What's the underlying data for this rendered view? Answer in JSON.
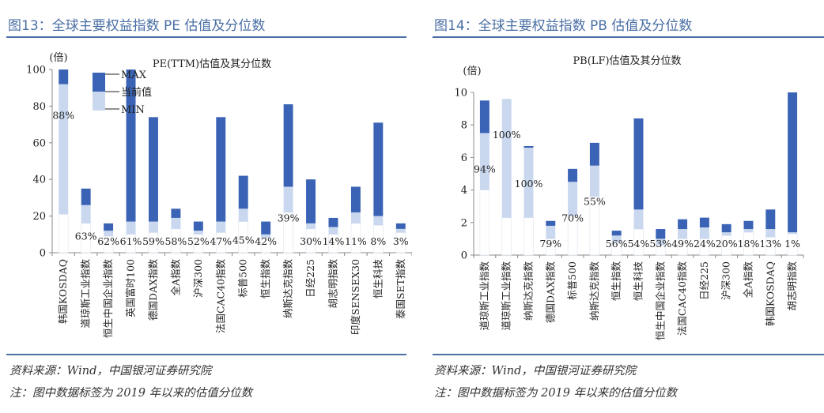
{
  "left": {
    "figure_title": "图13：全球主要权益指数 PE 估值及分位数",
    "source": "资料来源：Wind，中国银河证券研究院",
    "note": "注：图中数据标签为 2019 年以来的估值分位数"
  },
  "right": {
    "figure_title": "图14：全球主要权益指数 PB 估值及分位数",
    "source": "资料来源：Wind，中国银河证券研究院",
    "note": "注：图中数据标签为 2019 年以来的估值分位数"
  },
  "colors": {
    "max_band": "#3a63b5",
    "current_band": "#c9d8ef",
    "min_band": "#ffffff",
    "axis": "#888888"
  },
  "chart_data": [
    {
      "type": "bar",
      "subtype": "stacked-range",
      "title": "PE(TTM)估值及其分位数",
      "ylabel": "(倍)",
      "ylim": [
        0,
        100
      ],
      "yticks": [
        0,
        20,
        40,
        60,
        80,
        100
      ],
      "legend": [
        "MAX",
        "当前值",
        "MIN"
      ],
      "legend_position": "top-left",
      "categories": [
        "韩国KOSDAQ",
        "道琼斯工业指数",
        "恒生中国企业指数",
        "英国富时100",
        "德国DAX指数",
        "全A指数",
        "沪深300",
        "法国CAC40指数",
        "标普500",
        "恒生指数",
        "纳斯达克指数",
        "日经225",
        "胡志明指数",
        "印度SENSEX30",
        "恒生科技",
        "泰国SET指数"
      ],
      "min": [
        21,
        16,
        9,
        10,
        11,
        13,
        10,
        11,
        17,
        8,
        22,
        13,
        10,
        16,
        15,
        11
      ],
      "current": [
        92,
        26,
        12,
        17,
        17,
        19,
        12,
        17,
        24,
        10,
        36,
        16,
        14,
        22,
        20,
        13
      ],
      "max": [
        100,
        35,
        16,
        100,
        74,
        24,
        17,
        74,
        42,
        17,
        81,
        40,
        19,
        36,
        71,
        16
      ],
      "labels": [
        "88%",
        "63%",
        "62%",
        "61%",
        "59%",
        "58%",
        "52%",
        "47%",
        "45%",
        "42%",
        "39%",
        "30%",
        "14%",
        "11%",
        "8%",
        "3%"
      ]
    },
    {
      "type": "bar",
      "subtype": "stacked-range",
      "title": "PB(LF)估值及其分位数",
      "ylabel": "(倍)",
      "ylim": [
        0,
        10
      ],
      "yticks": [
        0,
        2,
        4,
        6,
        8,
        10
      ],
      "categories": [
        "道琼斯工业指数",
        "道琼斯工业指数",
        "纳斯达克指数",
        "德国DAX指数",
        "标普500",
        "纳斯达克指数",
        "恒生指数",
        "恒生科技",
        "恒生中国企业指数",
        "法国CAC40指数",
        "日经225",
        "沪深300",
        "全A指数",
        "韩国KOSDAQ",
        "胡志明指数"
      ],
      "min": [
        4.0,
        2.3,
        2.3,
        1.0,
        2.4,
        3.6,
        0.8,
        1.6,
        0.6,
        1.0,
        1.0,
        1.2,
        1.4,
        1.1,
        1.3
      ],
      "current": [
        7.5,
        9.6,
        6.6,
        1.8,
        4.5,
        5.5,
        1.2,
        2.8,
        1.0,
        1.6,
        1.7,
        1.4,
        1.6,
        1.6,
        1.4
      ],
      "max": [
        9.5,
        9.6,
        6.7,
        2.1,
        5.3,
        6.9,
        1.5,
        8.4,
        1.6,
        2.2,
        2.3,
        1.9,
        2.1,
        2.8,
        10.0
      ],
      "labels": [
        "94%",
        "100%",
        "100%",
        "79%",
        "70%",
        "55%",
        "56%",
        "54%",
        "53%",
        "49%",
        "24%",
        "20%",
        "18%",
        "13%",
        "1%"
      ]
    }
  ]
}
